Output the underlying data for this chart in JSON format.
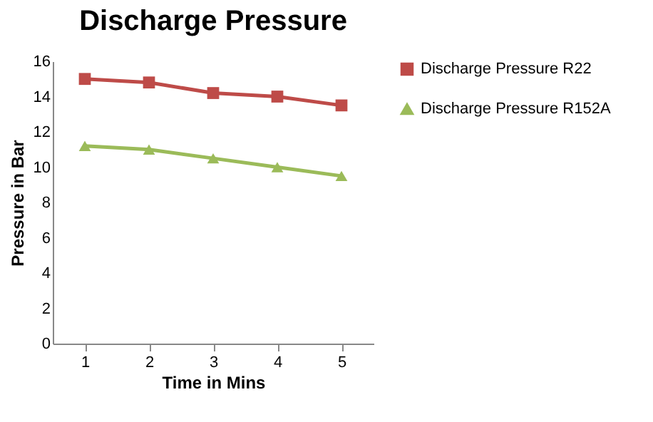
{
  "chart_data": {
    "type": "line",
    "title": "Discharge Pressure",
    "xlabel": "Time in Mins",
    "ylabel": "Pressure in Bar",
    "categories": [
      "1",
      "2",
      "3",
      "4",
      "5"
    ],
    "series": [
      {
        "name": "Discharge Pressure R22",
        "color": "#be4b48",
        "marker": "square",
        "values": [
          15,
          14.8,
          14.2,
          14,
          13.5
        ]
      },
      {
        "name": "Discharge Pressure R152A",
        "color": "#9bbb59",
        "marker": "triangle",
        "values": [
          11.2,
          11,
          10.5,
          10,
          9.5
        ]
      }
    ],
    "ylim": [
      0,
      16
    ],
    "yticks": [
      0,
      2,
      4,
      6,
      8,
      10,
      12,
      14,
      16
    ],
    "grid": false,
    "legend": "right"
  }
}
